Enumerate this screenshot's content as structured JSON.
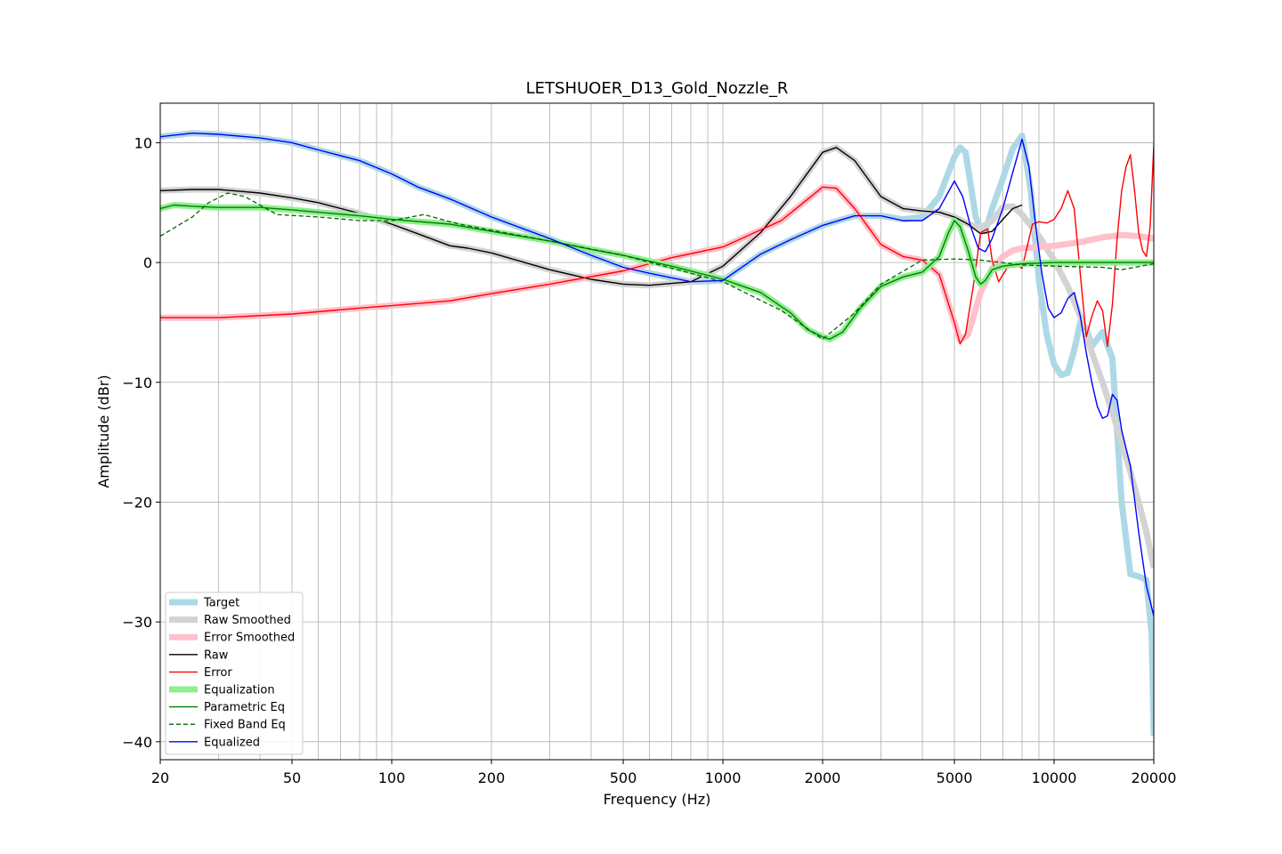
{
  "chart_data": {
    "type": "line",
    "title": "LETSHUOER_D13_Gold_Nozzle_R",
    "xlabel": "Frequency (Hz)",
    "ylabel": "Amplitude (dBr)",
    "xscale": "log",
    "xlim": [
      20,
      20000
    ],
    "ylim": [
      -41.5,
      13.3
    ],
    "grid": true,
    "legend_position": "lower-left",
    "x_ticks": [
      {
        "value": 20,
        "label": "20"
      },
      {
        "value": 50,
        "label": "50"
      },
      {
        "value": 100,
        "label": "100"
      },
      {
        "value": 200,
        "label": "200"
      },
      {
        "value": 500,
        "label": "500"
      },
      {
        "value": 1000,
        "label": "1000"
      },
      {
        "value": 2000,
        "label": "2000"
      },
      {
        "value": 5000,
        "label": "5000"
      },
      {
        "value": 10000,
        "label": "10000"
      },
      {
        "value": 20000,
        "label": "20000"
      }
    ],
    "y_ticks": [
      {
        "value": 10,
        "label": "10"
      },
      {
        "value": 0,
        "label": "0"
      },
      {
        "value": -10,
        "label": "−10"
      },
      {
        "value": -20,
        "label": "−20"
      },
      {
        "value": -30,
        "label": "−30"
      },
      {
        "value": -40,
        "label": "−40"
      }
    ],
    "series": [
      {
        "name": "Target",
        "color": "#add8e6",
        "style": "thick",
        "x": [
          20,
          25,
          30,
          40,
          50,
          60,
          80,
          100,
          120,
          150,
          200,
          300,
          400,
          500,
          600,
          800,
          1000,
          1300,
          1600,
          2000,
          2500,
          3000,
          3500,
          4000,
          4500,
          5000,
          5200,
          5400,
          5600,
          5800,
          6000,
          6200,
          6500,
          7000,
          7500,
          8000,
          8500,
          9000,
          9500,
          10000,
          10500,
          11000,
          11500,
          12000,
          12500,
          13000,
          14000,
          15000,
          16000,
          17000,
          18000,
          19000,
          19700,
          20000
        ],
        "y": [
          10.5,
          10.8,
          10.7,
          10.4,
          10.0,
          9.4,
          8.5,
          7.4,
          6.3,
          5.3,
          3.8,
          2.0,
          0.6,
          -0.4,
          -0.9,
          -1.6,
          -1.5,
          0.7,
          1.9,
          3.1,
          3.9,
          3.9,
          3.6,
          3.8,
          5.5,
          8.8,
          9.6,
          9.2,
          6.5,
          3.8,
          2.8,
          2.6,
          4.5,
          7.0,
          9.5,
          10.6,
          6.0,
          -1.5,
          -6.0,
          -8.5,
          -9.4,
          -9.2,
          -7.3,
          -5.0,
          -5.5,
          -7.0,
          -5.8,
          -8.0,
          -20.0,
          -26.0,
          -26.2,
          -26.5,
          -31.0,
          -39.5
        ]
      },
      {
        "name": "Raw Smoothed",
        "color": "#d3d3d3",
        "style": "thick",
        "x": [
          20,
          25,
          30,
          40,
          50,
          60,
          80,
          100,
          120,
          150,
          170,
          200,
          300,
          400,
          500,
          600,
          800,
          1000,
          1300,
          1600,
          2000,
          2200,
          2500,
          3000,
          3500,
          4000,
          4500,
          5000,
          5500,
          6000,
          6500,
          7000,
          7500,
          8000,
          9000,
          10000,
          11000,
          12000,
          13000,
          14000,
          15000,
          16000,
          17000,
          18000,
          19000,
          20000
        ],
        "y": [
          6.0,
          6.1,
          6.1,
          5.8,
          5.4,
          5.0,
          4.1,
          3.2,
          2.4,
          1.4,
          1.2,
          0.8,
          -0.6,
          -1.4,
          -1.8,
          -1.9,
          -1.6,
          -0.3,
          2.5,
          5.5,
          9.2,
          9.6,
          8.5,
          5.5,
          4.5,
          4.3,
          4.2,
          3.8,
          3.2,
          2.9,
          3.5,
          4.6,
          4.7,
          4.0,
          2.2,
          0.2,
          -2.0,
          -4.5,
          -7.5,
          -10.0,
          -12.5,
          -15.0,
          -17.5,
          -20.0,
          -22.5,
          -25.5
        ]
      },
      {
        "name": "Error Smoothed",
        "color": "#ffc0cb",
        "style": "thick",
        "x": [
          20,
          30,
          50,
          80,
          100,
          150,
          200,
          300,
          500,
          700,
          1000,
          1500,
          2000,
          2200,
          2500,
          3000,
          3500,
          4000,
          4500,
          5000,
          5200,
          5500,
          6000,
          6500,
          7000,
          7500,
          8000,
          9000,
          10000,
          12000,
          14000,
          16000,
          18000,
          20000
        ],
        "y": [
          -4.6,
          -4.6,
          -4.3,
          -3.8,
          -3.6,
          -3.2,
          -2.6,
          -1.8,
          -0.7,
          0.4,
          1.3,
          3.5,
          6.3,
          6.2,
          4.5,
          1.5,
          0.5,
          0.2,
          -1.0,
          -5.0,
          -6.5,
          -6.0,
          -2.5,
          -0.5,
          0.5,
          1.0,
          1.2,
          1.3,
          1.4,
          1.7,
          2.1,
          2.3,
          2.2,
          2.0
        ]
      },
      {
        "name": "Raw",
        "color": "#000000",
        "style": "thin",
        "x": [
          20,
          25,
          30,
          40,
          50,
          60,
          80,
          100,
          120,
          150,
          170,
          200,
          300,
          400,
          500,
          600,
          800,
          1000,
          1300,
          1600,
          2000,
          2200,
          2500,
          3000,
          3500,
          4000,
          4500,
          5000,
          5500,
          6000,
          6500,
          7000,
          7500,
          8000
        ],
        "y": [
          6.0,
          6.1,
          6.1,
          5.8,
          5.4,
          5.0,
          4.1,
          3.2,
          2.4,
          1.4,
          1.2,
          0.8,
          -0.6,
          -1.4,
          -1.8,
          -1.9,
          -1.6,
          -0.3,
          2.5,
          5.5,
          9.2,
          9.6,
          8.5,
          5.5,
          4.5,
          4.3,
          4.2,
          3.8,
          3.2,
          2.4,
          2.6,
          3.6,
          4.5,
          4.8
        ]
      },
      {
        "name": "Error",
        "color": "#ff0000",
        "style": "thin",
        "x": [
          20,
          30,
          50,
          80,
          100,
          150,
          200,
          300,
          500,
          700,
          1000,
          1500,
          2000,
          2200,
          2500,
          3000,
          3500,
          4000,
          4500,
          5000,
          5200,
          5400,
          5700,
          6000,
          6300,
          6500,
          6800,
          7200,
          7600,
          8000,
          8600,
          9000,
          9500,
          10000,
          10500,
          11000,
          11500,
          12000,
          12500,
          13000,
          13500,
          14000,
          14500,
          15000,
          15500,
          16000,
          16500,
          17000,
          17500,
          18000,
          18500,
          19000,
          19500,
          20000
        ],
        "y": [
          -4.6,
          -4.6,
          -4.3,
          -3.8,
          -3.6,
          -3.2,
          -2.6,
          -1.8,
          -0.7,
          0.4,
          1.3,
          3.5,
          6.3,
          6.2,
          4.5,
          1.5,
          0.5,
          0.2,
          -1.0,
          -5.0,
          -6.8,
          -6.0,
          -2.0,
          2.5,
          2.8,
          0.2,
          -1.6,
          -0.5,
          0.0,
          -0.5,
          3.2,
          3.4,
          3.3,
          3.6,
          4.5,
          6.0,
          4.5,
          -1.0,
          -6.2,
          -4.5,
          -3.2,
          -4.0,
          -7.0,
          -3.5,
          2.0,
          6.0,
          8.0,
          9.0,
          6.0,
          2.5,
          1.0,
          0.5,
          3.0,
          9.8
        ]
      },
      {
        "name": "Equalization",
        "color": "#90ee90",
        "style": "thick",
        "x": [
          20,
          22,
          25,
          30,
          40,
          50,
          60,
          80,
          100,
          150,
          200,
          300,
          400,
          500,
          700,
          1000,
          1300,
          1600,
          1800,
          2000,
          2100,
          2300,
          2600,
          3000,
          3500,
          4000,
          4500,
          4800,
          5000,
          5200,
          5500,
          5800,
          6000,
          6200,
          6500,
          7000,
          8000,
          10000,
          15000,
          20000
        ],
        "y": [
          4.5,
          4.8,
          4.7,
          4.6,
          4.6,
          4.4,
          4.2,
          3.9,
          3.6,
          3.2,
          2.6,
          1.8,
          1.1,
          0.6,
          -0.3,
          -1.4,
          -2.5,
          -4.2,
          -5.6,
          -6.2,
          -6.4,
          -5.8,
          -3.8,
          -2.0,
          -1.2,
          -0.8,
          0.5,
          2.5,
          3.5,
          3.0,
          1.0,
          -1.2,
          -1.8,
          -1.5,
          -0.6,
          -0.3,
          -0.1,
          0.0,
          0.0,
          0.0
        ]
      },
      {
        "name": "Parametric Eq",
        "color": "#008000",
        "style": "thin",
        "x": [
          20,
          22,
          25,
          30,
          40,
          50,
          60,
          80,
          100,
          150,
          200,
          300,
          400,
          500,
          700,
          1000,
          1300,
          1600,
          1800,
          2000,
          2100,
          2300,
          2600,
          3000,
          3500,
          4000,
          4500,
          4800,
          5000,
          5200,
          5500,
          5800,
          6000,
          6200,
          6500,
          7000,
          8000,
          10000,
          15000,
          20000
        ],
        "y": [
          4.5,
          4.8,
          4.7,
          4.6,
          4.6,
          4.4,
          4.2,
          3.9,
          3.6,
          3.2,
          2.6,
          1.8,
          1.1,
          0.6,
          -0.3,
          -1.4,
          -2.5,
          -4.2,
          -5.6,
          -6.2,
          -6.4,
          -5.8,
          -3.8,
          -2.0,
          -1.2,
          -0.8,
          0.5,
          2.5,
          3.5,
          3.0,
          1.0,
          -1.2,
          -1.8,
          -1.5,
          -0.6,
          -0.3,
          -0.1,
          0.0,
          0.0,
          0.0
        ]
      },
      {
        "name": "Fixed Band Eq",
        "color": "#006400",
        "style": "dashed",
        "x": [
          20,
          25,
          28,
          32,
          36,
          45,
          60,
          80,
          100,
          125,
          160,
          200,
          300,
          500,
          800,
          1000,
          1500,
          2000,
          2500,
          3000,
          4000,
          5000,
          6000,
          8000,
          10000,
          14000,
          16000,
          20000
        ],
        "y": [
          2.2,
          3.8,
          5.0,
          5.8,
          5.5,
          4.0,
          3.8,
          3.5,
          3.5,
          4.0,
          3.2,
          2.7,
          1.8,
          0.6,
          -0.9,
          -1.6,
          -4.0,
          -6.4,
          -4.2,
          -1.8,
          0.2,
          0.3,
          0.2,
          -0.2,
          -0.3,
          -0.4,
          -0.6,
          -0.1
        ]
      },
      {
        "name": "Equalized",
        "color": "#0000ff",
        "style": "thin",
        "x": [
          20,
          25,
          30,
          40,
          50,
          60,
          80,
          100,
          120,
          150,
          200,
          300,
          400,
          500,
          600,
          800,
          1000,
          1300,
          1600,
          2000,
          2500,
          3000,
          3500,
          4000,
          4500,
          5000,
          5300,
          5600,
          5900,
          6200,
          6500,
          7000,
          7500,
          8000,
          8400,
          8800,
          9200,
          9600,
          10000,
          10500,
          11000,
          11500,
          12000,
          12500,
          13000,
          13500,
          14000,
          14500,
          15000,
          15500,
          16000,
          17000,
          18000,
          19000,
          20000
        ],
        "y": [
          10.5,
          10.8,
          10.7,
          10.4,
          10.0,
          9.4,
          8.5,
          7.4,
          6.3,
          5.3,
          3.8,
          2.0,
          0.6,
          -0.4,
          -0.9,
          -1.6,
          -1.5,
          0.7,
          1.9,
          3.1,
          3.9,
          3.9,
          3.5,
          3.5,
          4.5,
          6.8,
          5.5,
          3.0,
          1.2,
          0.9,
          2.0,
          4.5,
          7.5,
          10.3,
          8.0,
          3.0,
          -1.0,
          -3.8,
          -4.6,
          -4.2,
          -3.0,
          -2.5,
          -4.5,
          -7.5,
          -10.0,
          -12.0,
          -13.0,
          -12.8,
          -11.0,
          -11.5,
          -14.0,
          -17.0,
          -22.5,
          -27.0,
          -29.5
        ]
      }
    ]
  }
}
